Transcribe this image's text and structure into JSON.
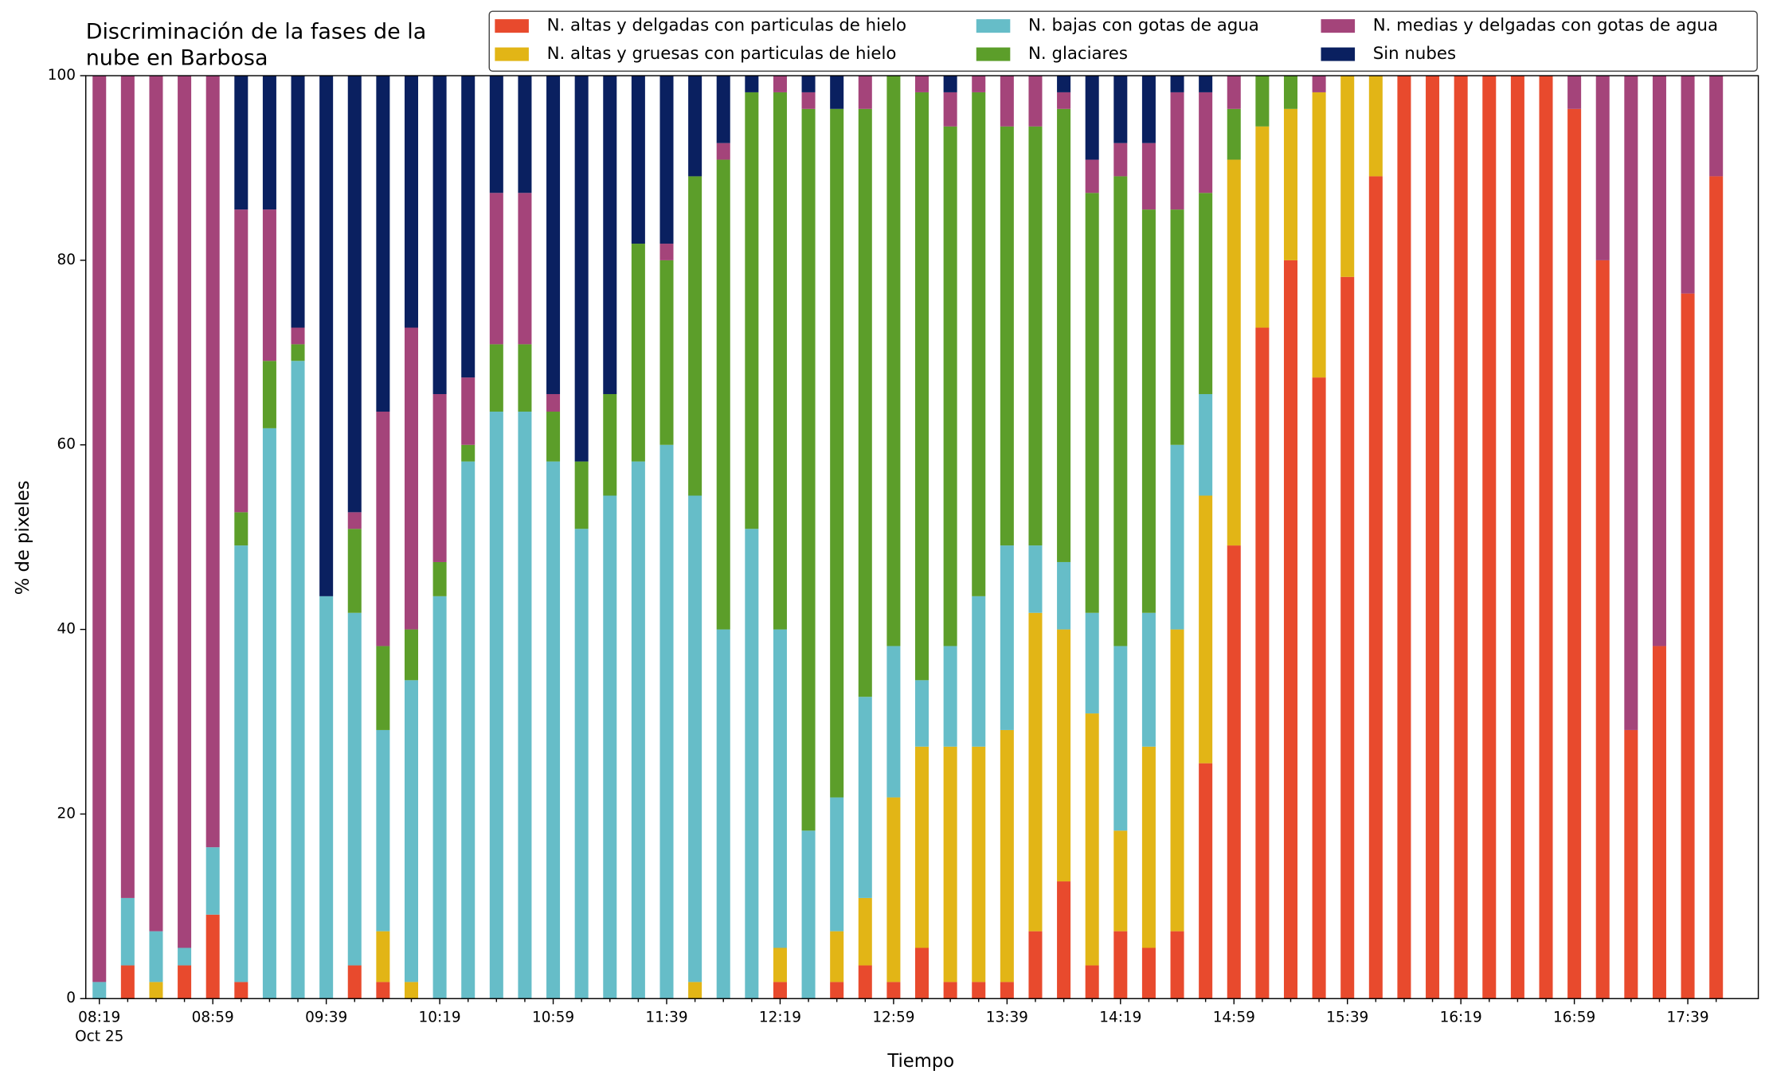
{
  "chart_data": {
    "type": "bar",
    "stacked": true,
    "title": [
      "Discriminación de la fases de la",
      "nube en Barbosa"
    ],
    "x_label": "Tiempo",
    "y_label": "% de pixeles",
    "date_label": "Oct 25",
    "categories": [
      "08:19",
      null,
      null,
      null,
      "08:59",
      null,
      null,
      null,
      "09:39",
      null,
      null,
      null,
      "10:19",
      null,
      null,
      null,
      "10:59",
      null,
      null,
      null,
      "11:39",
      null,
      null,
      null,
      "12:19",
      null,
      null,
      null,
      "12:59",
      null,
      null,
      null,
      "13:39",
      null,
      null,
      null,
      "14:19",
      null,
      null,
      null,
      "14:59",
      null,
      null,
      null,
      "15:39",
      null,
      null,
      null,
      "16:19",
      null,
      null,
      null,
      "16:59",
      null,
      null,
      null,
      "17:39",
      null
    ],
    "ylim": [
      0,
      100
    ],
    "yticks": [
      0,
      20,
      40,
      60,
      80,
      100
    ],
    "legend": "upper-right",
    "series": [
      {
        "name": "N. altas y delgadas con particulas de hielo",
        "color": "#e84a2d",
        "values": [
          0,
          3.6,
          0,
          3.6,
          9.1,
          1.8,
          0,
          0,
          0,
          3.6,
          1.8,
          0,
          0,
          0,
          0,
          0,
          0,
          0,
          0,
          0,
          0,
          0,
          0,
          0,
          1.8,
          0,
          1.8,
          3.6,
          1.8,
          5.5,
          1.8,
          1.8,
          1.8,
          7.3,
          12.7,
          3.6,
          7.3,
          5.5,
          7.3,
          25.5,
          49.1,
          72.7,
          80,
          67.3,
          78.2,
          89.1,
          100,
          100,
          100,
          100,
          100,
          100,
          96.4,
          80,
          29.1,
          38.2,
          76.4,
          89.1
        ]
      },
      {
        "name": "N. altas y gruesas con particulas de hielo",
        "color": "#e2b516",
        "values": [
          0,
          0,
          1.8,
          0,
          0,
          0,
          0,
          0,
          0,
          0,
          5.5,
          1.8,
          0,
          0,
          0,
          0,
          0,
          0,
          0,
          0,
          0,
          1.8,
          0,
          0,
          3.7,
          0,
          5.5,
          7.3,
          20,
          21.8,
          25.5,
          25.5,
          27.3,
          34.5,
          27.3,
          27.3,
          10.9,
          21.8,
          32.7,
          29,
          41.8,
          21.8,
          16.4,
          30.9,
          21.8,
          10.9,
          0,
          0,
          0,
          0,
          0,
          0,
          0,
          0,
          0,
          0,
          0,
          0
        ]
      },
      {
        "name": "N. bajas con gotas de agua",
        "color": "#66bdc8",
        "values": [
          1.8,
          7.3,
          5.5,
          1.9,
          7.3,
          47.3,
          61.8,
          69.1,
          43.6,
          38.2,
          21.8,
          32.7,
          43.6,
          58.2,
          63.6,
          63.6,
          58.2,
          50.9,
          54.5,
          58.2,
          60,
          52.7,
          40,
          50.9,
          34.5,
          18.2,
          14.5,
          21.8,
          16.4,
          7.2,
          10.9,
          16.3,
          20,
          7.3,
          7.3,
          10.9,
          20,
          14.5,
          20,
          11,
          0,
          0,
          0,
          0,
          0,
          0,
          0,
          0,
          0,
          0,
          0,
          0,
          0,
          0,
          0,
          0,
          0,
          0
        ]
      },
      {
        "name": "N. glaciares",
        "color": "#5c9e2a",
        "values": [
          0,
          0,
          0,
          0,
          0,
          3.6,
          7.3,
          1.8,
          0,
          9.1,
          9.1,
          5.5,
          3.7,
          1.8,
          7.3,
          7.3,
          5.4,
          7.3,
          11,
          23.6,
          20,
          34.6,
          50.9,
          47.3,
          58.2,
          78.2,
          74.6,
          63.7,
          61.8,
          63.7,
          56.3,
          54.6,
          45.4,
          45.4,
          49.1,
          45.5,
          50.9,
          43.7,
          25.5,
          21.8,
          5.5,
          5.5,
          3.6,
          0,
          0,
          0,
          0,
          0,
          0,
          0,
          0,
          0,
          0,
          0,
          0,
          0,
          0,
          0
        ]
      },
      {
        "name": "N. medias y delgadas con gotas de agua",
        "color": "#a4447a",
        "values": [
          98.2,
          89.1,
          92.7,
          94.5,
          83.6,
          32.8,
          16.4,
          1.8,
          0,
          1.8,
          25.4,
          32.7,
          18.2,
          7.3,
          16.4,
          16.4,
          1.9,
          0,
          0,
          0,
          1.8,
          0,
          1.8,
          0,
          1.8,
          1.8,
          0,
          3.6,
          0,
          1.8,
          3.7,
          1.8,
          5.5,
          5.5,
          1.8,
          3.6,
          3.6,
          7.2,
          12.7,
          10.9,
          3.6,
          0,
          0,
          1.8,
          0,
          0,
          0,
          0,
          0,
          0,
          0,
          0,
          3.6,
          20,
          70.9,
          61.8,
          23.6,
          10.9
        ]
      },
      {
        "name": "Sin nubes",
        "color": "#0a2060",
        "values": [
          0,
          0,
          0,
          0,
          0,
          14.5,
          14.5,
          27.3,
          56.4,
          47.3,
          36.4,
          27.3,
          34.5,
          32.7,
          12.7,
          12.7,
          34.5,
          41.8,
          34.5,
          18.2,
          18.2,
          10.9,
          7.3,
          1.8,
          0,
          1.8,
          3.6,
          0,
          0,
          0,
          1.8,
          0,
          0,
          0,
          1.8,
          9.1,
          7.3,
          7.3,
          1.8,
          1.8,
          0,
          0,
          0,
          0,
          0,
          0,
          0,
          0,
          0,
          0,
          0,
          0,
          0,
          0,
          0,
          0,
          0,
          0
        ]
      }
    ]
  }
}
